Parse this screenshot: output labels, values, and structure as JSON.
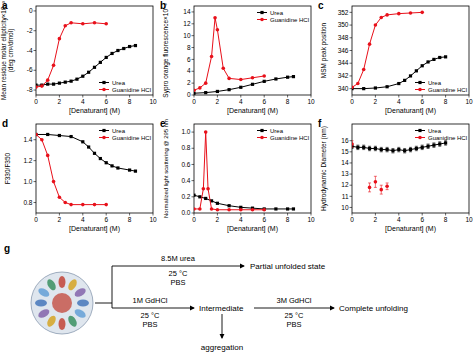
{
  "chart_data": [
    {
      "type": "line",
      "panel": "a",
      "xlabel": "[Denaturant] (M)",
      "ylabel": [
        "Mean residue molar ellipticity×10⁻³",
        "(deg cm²/dmol)"
      ],
      "xlim": [
        0,
        10
      ],
      "xticks": [
        0,
        2,
        4,
        6,
        8,
        10
      ],
      "ylim": [
        -8.5,
        0.5
      ],
      "yticks": [
        -8,
        -6,
        -4,
        -2,
        0
      ],
      "legend": "lower right",
      "series": [
        {
          "name": "Urea",
          "color": "#000000",
          "marker": "square",
          "x": [
            0,
            0.5,
            1,
            1.5,
            2,
            2.5,
            3,
            3.5,
            4,
            4.5,
            5,
            5.5,
            6,
            6.5,
            7,
            7.5,
            8,
            8.5
          ],
          "values": [
            -7.5,
            -7.5,
            -7.4,
            -7.4,
            -7.3,
            -7.2,
            -7.1,
            -6.9,
            -6.6,
            -6.2,
            -5.7,
            -5.2,
            -4.7,
            -4.3,
            -4.0,
            -3.8,
            -3.6,
            -3.5
          ]
        },
        {
          "name": "Guanidine HCl",
          "color": "#e8101a",
          "marker": "circle",
          "x": [
            0,
            0.5,
            1,
            1.5,
            2,
            2.5,
            3,
            4,
            5,
            6
          ],
          "values": [
            -7.7,
            -7.6,
            -7.0,
            -5.5,
            -2.8,
            -1.5,
            -1.2,
            -1.3,
            -1.2,
            -1.3
          ]
        }
      ]
    },
    {
      "type": "line",
      "panel": "b",
      "xlabel": "[Denaturant] (M)",
      "ylabel": [
        "Sypro orange fluorescence×10⁻³"
      ],
      "xlim": [
        0,
        10
      ],
      "xticks": [
        0,
        2,
        4,
        6,
        8,
        10
      ],
      "ylim": [
        0,
        15
      ],
      "yticks": [
        0,
        2,
        4,
        6,
        8,
        10,
        12,
        14
      ],
      "legend": "upper right",
      "series": [
        {
          "name": "Urea",
          "color": "#000000",
          "marker": "square",
          "x": [
            0,
            1,
            2,
            3,
            4,
            5,
            6,
            7,
            8,
            8.5
          ],
          "values": [
            0.3,
            0.4,
            0.6,
            0.9,
            1.3,
            1.8,
            2.3,
            2.7,
            3.0,
            3.1
          ]
        },
        {
          "name": "Guanidine HCl",
          "color": "#e8101a",
          "marker": "circle",
          "x": [
            0,
            0.5,
            1,
            1.5,
            1.8,
            2,
            2.5,
            3,
            4,
            5,
            6
          ],
          "values": [
            0.8,
            1.2,
            2.0,
            6.5,
            13,
            11,
            4.5,
            2.8,
            2.6,
            2.9,
            3.2
          ]
        }
      ]
    },
    {
      "type": "line",
      "panel": "c",
      "xlabel": "[Denaturant] (M)",
      "ylabel": [
        "MSM peak position"
      ],
      "xlim": [
        0,
        10
      ],
      "xticks": [
        0,
        2,
        4,
        6,
        8,
        10
      ],
      "ylim": [
        339,
        353
      ],
      "yticks": [
        340,
        342,
        344,
        346,
        348,
        350,
        352
      ],
      "legend": "lower right",
      "series": [
        {
          "name": "Urea",
          "color": "#000000",
          "marker": "square",
          "x": [
            0,
            1,
            2,
            3,
            4,
            4.5,
            5,
            5.5,
            6,
            6.5,
            7,
            7.5,
            8
          ],
          "values": [
            340,
            340,
            340.1,
            340.3,
            340.8,
            341.3,
            342,
            342.8,
            343.6,
            344.2,
            344.6,
            344.9,
            345
          ]
        },
        {
          "name": "Guanidine HCl",
          "color": "#e8101a",
          "marker": "circle",
          "x": [
            0,
            0.5,
            1,
            1.5,
            2,
            2.5,
            3,
            4,
            5,
            6
          ],
          "values": [
            340.2,
            340.8,
            343,
            347,
            350,
            351.2,
            351.6,
            351.8,
            351.9,
            352
          ]
        }
      ]
    },
    {
      "type": "line",
      "panel": "d",
      "xlabel": "[Denaturant] (M)",
      "ylabel": [
        "F330/F350"
      ],
      "xlim": [
        0,
        10
      ],
      "xticks": [
        0,
        2,
        4,
        6,
        8,
        10
      ],
      "ylim": [
        0.7,
        1.55
      ],
      "yticks": [
        0.8,
        {
          "value": 1,
          "label": "1.0"
        },
        1.2,
        1.4
      ],
      "legend": "upper right",
      "series": [
        {
          "name": "Urea",
          "color": "#000000",
          "marker": "square",
          "x": [
            0,
            1,
            2,
            3,
            4,
            4.5,
            5,
            5.5,
            6,
            6.5,
            7,
            8,
            8.5
          ],
          "values": [
            1.45,
            1.45,
            1.44,
            1.43,
            1.38,
            1.33,
            1.27,
            1.22,
            1.18,
            1.15,
            1.13,
            1.11,
            1.1
          ]
        },
        {
          "name": "Guanidine HCl",
          "color": "#e8101a",
          "marker": "circle",
          "x": [
            0,
            0.5,
            1,
            1.5,
            2,
            2.5,
            3,
            4,
            5,
            6
          ],
          "values": [
            1.45,
            1.4,
            1.25,
            1.0,
            0.85,
            0.8,
            0.78,
            0.78,
            0.78,
            0.78
          ]
        }
      ]
    },
    {
      "type": "line",
      "panel": "e",
      "xlabel": "[Denaturant] (M)",
      "ylabel": [
        "Normalized light scattering @ 295 nm"
      ],
      "xlim": [
        0,
        10
      ],
      "xticks": [
        0,
        2,
        4,
        6,
        8,
        10
      ],
      "ylim": [
        0,
        1.1
      ],
      "yticks": [
        {
          "value": 0,
          "label": "0.0"
        },
        0.2,
        0.4,
        0.6,
        0.8,
        {
          "value": 1,
          "label": "1.0"
        }
      ],
      "legend": "upper right",
      "series": [
        {
          "name": "Urea",
          "color": "#000000",
          "marker": "square",
          "x": [
            0,
            0.5,
            1,
            1.5,
            2,
            3,
            4,
            5,
            6,
            7,
            8,
            8.5
          ],
          "values": [
            0.22,
            0.2,
            0.18,
            0.15,
            0.12,
            0.09,
            0.07,
            0.06,
            0.05,
            0.05,
            0.05,
            0.05
          ]
        },
        {
          "name": "Guanidine HCl",
          "color": "#e8101a",
          "marker": "circle",
          "x": [
            0,
            0.5,
            0.8,
            1,
            1.2,
            1.5,
            2,
            3,
            4,
            5,
            6
          ],
          "values": [
            0.05,
            0.05,
            0.3,
            1.0,
            0.3,
            0.05,
            0.04,
            0.04,
            0.04,
            0.04,
            0.04
          ]
        }
      ]
    },
    {
      "type": "line",
      "panel": "f",
      "xlabel": "[Denaturant] (M)",
      "ylabel": [
        "Hydrodynamic Diameter (nm)"
      ],
      "xlim": [
        0,
        10
      ],
      "xticks": [
        0,
        2,
        4,
        6,
        8,
        10
      ],
      "ylim": [
        9.5,
        17.5
      ],
      "yticks": [
        10,
        11,
        12,
        13,
        14,
        15,
        16
      ],
      "legend": "upper right",
      "series": [
        {
          "name": "Urea",
          "color": "#000000",
          "marker": "square",
          "x": [
            0,
            0.5,
            1,
            1.5,
            2,
            2.5,
            3,
            3.5,
            4,
            4.5,
            5,
            5.5,
            6,
            6.5,
            7,
            7.5,
            8
          ],
          "values": [
            15.5,
            15.4,
            15.4,
            15.3,
            15.3,
            15.2,
            15.2,
            15.1,
            15.2,
            15.1,
            15.2,
            15.3,
            15.4,
            15.5,
            15.6,
            15.7,
            15.8
          ],
          "errors": [
            0.2,
            0.2,
            0.2,
            0.2,
            0.2,
            0.2,
            0.2,
            0.2,
            0.2,
            0.2,
            0.2,
            0.2,
            0.2,
            0.2,
            0.2,
            0.2,
            0.2
          ]
        },
        {
          "name": "Guanidine HCl",
          "color": "#e8101a",
          "marker": "circle",
          "line_style": "none",
          "x": [
            0,
            1.5,
            2,
            2.5,
            3
          ],
          "values": [
            15.7,
            11.8,
            12.3,
            11.6,
            11.9
          ],
          "errors": [
            0.3,
            0.4,
            0.5,
            0.4,
            0.3
          ]
        }
      ]
    }
  ],
  "diagram": {
    "panel": "g",
    "branches": [
      {
        "condition": "8.5M urea",
        "temperature": "25 °C",
        "buffer": "PBS",
        "result": "Partial unfolded state"
      },
      {
        "condition": "1M GdHCl",
        "temperature": "25 °C",
        "buffer": "PBS",
        "result": "Intermediate"
      },
      {
        "condition": "3M GdHCl",
        "temperature": "25 °C",
        "buffer": "PBS",
        "result": "Complete unfolding"
      }
    ],
    "aggregation": "aggregation"
  }
}
